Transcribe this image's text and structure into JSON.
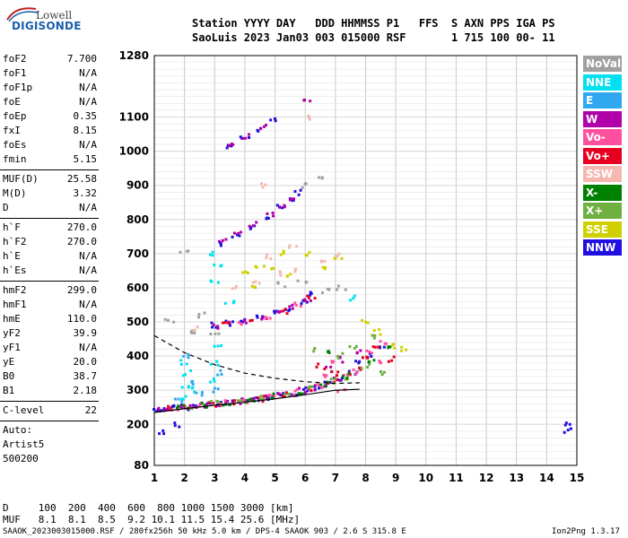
{
  "logo": {
    "top": "Lowell",
    "bottom": "DIGISONDE"
  },
  "header": {
    "labels": "Station YYYY DAY   DDD HHMMSS P1   FFS  S AXN PPS IGA PS",
    "values": "SaoLuis 2023 Jan03 003 015000 RSF       1 715 100 00- 11"
  },
  "params_group1": [
    {
      "k": "foF2",
      "v": "7.700"
    },
    {
      "k": "foF1",
      "v": "N/A"
    },
    {
      "k": "foF1p",
      "v": "N/A"
    },
    {
      "k": "foE",
      "v": "N/A"
    },
    {
      "k": "foEp",
      "v": "0.35"
    },
    {
      "k": "fxI",
      "v": "8.15"
    },
    {
      "k": "foEs",
      "v": "N/A"
    },
    {
      "k": "fmin",
      "v": "5.15"
    }
  ],
  "params_group2": [
    {
      "k": "MUF(D)",
      "v": "25.58"
    },
    {
      "k": "M(D)",
      "v": "3.32"
    },
    {
      "k": "D",
      "v": "N/A"
    }
  ],
  "params_group3": [
    {
      "k": "h`F",
      "v": "270.0"
    },
    {
      "k": "h`F2",
      "v": "270.0"
    },
    {
      "k": "h`E",
      "v": "N/A"
    },
    {
      "k": "h`Es",
      "v": "N/A"
    }
  ],
  "params_group4": [
    {
      "k": "hmF2",
      "v": "299.0"
    },
    {
      "k": "hmF1",
      "v": "N/A"
    },
    {
      "k": "hmE",
      "v": "110.0"
    },
    {
      "k": "yF2",
      "v": "39.9"
    },
    {
      "k": "yF1",
      "v": "N/A"
    },
    {
      "k": "yE",
      "v": "20.0"
    },
    {
      "k": "B0",
      "v": "38.7"
    },
    {
      "k": "B1",
      "v": "2.18"
    }
  ],
  "clevel": {
    "k": "C-level",
    "v": "22"
  },
  "auto": [
    "Auto:",
    "Artist5",
    "500200"
  ],
  "legend": [
    {
      "label": "NoVal",
      "color": "#a0a0a0"
    },
    {
      "label": "NNE",
      "color": "#00e0f0"
    },
    {
      "label": "E",
      "color": "#30a8f0"
    },
    {
      "label": "W",
      "color": "#b000a8"
    },
    {
      "label": "Vo-",
      "color": "#ff50a0"
    },
    {
      "label": "Vo+",
      "color": "#e80020"
    },
    {
      "label": "SSW",
      "color": "#f4b8b0"
    },
    {
      "label": "X-",
      "color": "#008000"
    },
    {
      "label": "X+",
      "color": "#70b040"
    },
    {
      "label": "SSE",
      "color": "#d0d000"
    },
    {
      "label": "NNW",
      "color": "#2010e0"
    }
  ],
  "bottom": {
    "d_row": "D     100  200  400  600  800 1000 1500 3000 [km]",
    "muf_row": "MUF   8.1  8.1  8.5  9.2 10.1 11.5 15.4 25.6 [MHz]"
  },
  "footer": {
    "left": "SAAOK_2023003015000.RSF / 280fx256h 50 kHz 5.0 km / DPS-4 SAAOK 903 / 2.6 S 315.8 E",
    "right": "Ion2Png 1.3.17"
  },
  "chart_data": {
    "type": "scatter",
    "title": "",
    "xlabel": "",
    "ylabel": "",
    "xlim": [
      1,
      15
    ],
    "ylim": [
      80,
      1280
    ],
    "x_ticks": [
      1,
      2,
      3,
      4,
      5,
      6,
      7,
      8,
      9,
      10,
      11,
      12,
      13,
      14,
      15
    ],
    "y_ticks": [
      80,
      200,
      300,
      400,
      500,
      600,
      700,
      800,
      900,
      1000,
      1100,
      1280
    ],
    "grid": true,
    "series": [
      {
        "name": "NNW",
        "color": "#2010e0",
        "points": [
          [
            1.1,
            240
          ],
          [
            1.3,
            245
          ],
          [
            1.6,
            248
          ],
          [
            2.0,
            250
          ],
          [
            2.4,
            255
          ],
          [
            2.8,
            258
          ],
          [
            3.2,
            262
          ],
          [
            3.6,
            265
          ],
          [
            4.0,
            268
          ],
          [
            4.4,
            272
          ],
          [
            4.8,
            278
          ],
          [
            5.2,
            285
          ],
          [
            5.6,
            292
          ],
          [
            6.0,
            300
          ],
          [
            6.4,
            310
          ],
          [
            6.8,
            322
          ],
          [
            7.2,
            335
          ],
          [
            7.6,
            350
          ],
          [
            3.0,
            490
          ],
          [
            3.5,
            495
          ],
          [
            4.0,
            500
          ],
          [
            4.5,
            510
          ],
          [
            5.0,
            525
          ],
          [
            5.5,
            540
          ],
          [
            6.0,
            560
          ],
          [
            6.3,
            580
          ],
          [
            3.2,
            730
          ],
          [
            3.7,
            755
          ],
          [
            4.2,
            780
          ],
          [
            4.7,
            810
          ],
          [
            5.1,
            835
          ],
          [
            5.5,
            860
          ],
          [
            5.8,
            880
          ],
          [
            3.5,
            1010
          ],
          [
            4.0,
            1040
          ],
          [
            4.5,
            1065
          ],
          [
            4.9,
            1090
          ],
          [
            7.8,
            380
          ],
          [
            8.2,
            400
          ],
          [
            8.5,
            420
          ],
          [
            14.7,
            180
          ],
          [
            14.7,
            200
          ],
          [
            1.2,
            180
          ],
          [
            1.8,
            200
          ]
        ]
      },
      {
        "name": "W",
        "color": "#b000a8",
        "points": [
          [
            1.2,
            242
          ],
          [
            1.5,
            246
          ],
          [
            1.9,
            249
          ],
          [
            2.3,
            253
          ],
          [
            2.7,
            257
          ],
          [
            3.1,
            261
          ],
          [
            3.5,
            264
          ],
          [
            3.9,
            268
          ],
          [
            4.3,
            271
          ],
          [
            4.7,
            277
          ],
          [
            5.1,
            283
          ],
          [
            5.5,
            290
          ],
          [
            5.9,
            298
          ],
          [
            6.3,
            307
          ],
          [
            6.7,
            318
          ],
          [
            7.1,
            332
          ],
          [
            3.1,
            488
          ],
          [
            3.6,
            494
          ],
          [
            4.1,
            502
          ],
          [
            4.6,
            512
          ],
          [
            5.1,
            527
          ],
          [
            5.6,
            545
          ],
          [
            6.1,
            565
          ],
          [
            3.3,
            735
          ],
          [
            3.8,
            760
          ],
          [
            4.3,
            785
          ],
          [
            4.8,
            815
          ],
          [
            5.2,
            840
          ],
          [
            5.6,
            862
          ],
          [
            3.6,
            1015
          ],
          [
            4.1,
            1045
          ],
          [
            4.6,
            1070
          ],
          [
            6.8,
            360
          ],
          [
            7.3,
            390
          ],
          [
            7.8,
            410
          ],
          [
            6.1,
            1150
          ]
        ]
      },
      {
        "name": "Vo+",
        "color": "#e80020",
        "points": [
          [
            1.4,
            245
          ],
          [
            2.1,
            252
          ],
          [
            2.9,
            259
          ],
          [
            3.7,
            266
          ],
          [
            4.5,
            275
          ],
          [
            5.3,
            287
          ],
          [
            6.1,
            303
          ],
          [
            6.9,
            325
          ],
          [
            7.5,
            345
          ],
          [
            7.9,
            360
          ],
          [
            3.4,
            492
          ],
          [
            4.3,
            505
          ],
          [
            5.3,
            532
          ],
          [
            6.2,
            570
          ],
          [
            8.0,
            400
          ],
          [
            8.3,
            430
          ],
          [
            8.8,
            390
          ],
          [
            6.5,
            370
          ],
          [
            7.0,
            350
          ]
        ]
      },
      {
        "name": "Vo-",
        "color": "#ff50a0",
        "points": [
          [
            1.7,
            247
          ],
          [
            2.5,
            255
          ],
          [
            3.3,
            262
          ],
          [
            4.1,
            269
          ],
          [
            4.9,
            280
          ],
          [
            5.7,
            294
          ],
          [
            6.5,
            313
          ],
          [
            7.3,
            338
          ],
          [
            7.7,
            355
          ],
          [
            3.8,
            497
          ],
          [
            4.8,
            518
          ],
          [
            5.8,
            553
          ],
          [
            8.1,
            410
          ],
          [
            8.6,
            440
          ],
          [
            8.4,
            380
          ],
          [
            6.6,
            340
          ],
          [
            7.2,
            300
          ],
          [
            6.9,
            380
          ]
        ]
      },
      {
        "name": "X+",
        "color": "#70b040",
        "points": [
          [
            2.2,
            254
          ],
          [
            3.0,
            260
          ],
          [
            3.9,
            267
          ],
          [
            4.6,
            276
          ],
          [
            5.4,
            289
          ],
          [
            6.2,
            305
          ],
          [
            7.0,
            328
          ],
          [
            7.4,
            340
          ],
          [
            8.0,
            370
          ],
          [
            8.5,
            350
          ],
          [
            6.4,
            420
          ],
          [
            7.1,
            400
          ],
          [
            8.3,
            455
          ],
          [
            7.6,
            430
          ]
        ]
      },
      {
        "name": "X-",
        "color": "#008000",
        "points": [
          [
            1.9,
            250
          ],
          [
            2.6,
            256
          ],
          [
            3.4,
            263
          ],
          [
            4.2,
            270
          ],
          [
            5.0,
            282
          ],
          [
            5.8,
            296
          ],
          [
            6.6,
            316
          ],
          [
            7.4,
            342
          ],
          [
            8.2,
            390
          ],
          [
            6.9,
            410
          ],
          [
            8.7,
            420
          ]
        ]
      },
      {
        "name": "NNE",
        "color": "#00e0f0",
        "points": [
          [
            1.9,
            280
          ],
          [
            2.0,
            310
          ],
          [
            2.1,
            350
          ],
          [
            2.0,
            380
          ],
          [
            2.9,
            330
          ],
          [
            3.0,
            380
          ],
          [
            3.1,
            430
          ],
          [
            2.3,
            300
          ],
          [
            3.0,
            620
          ],
          [
            3.1,
            660
          ],
          [
            3.0,
            700
          ],
          [
            7.5,
            570
          ],
          [
            3.5,
            560
          ]
        ]
      },
      {
        "name": "E",
        "color": "#30a8f0",
        "points": [
          [
            1.8,
            270
          ],
          [
            2.2,
            320
          ],
          [
            2.5,
            290
          ],
          [
            2.0,
            400
          ],
          [
            3.0,
            300
          ],
          [
            3.2,
            350
          ]
        ]
      },
      {
        "name": "SSE",
        "color": "#d0d000",
        "points": [
          [
            4.0,
            640
          ],
          [
            4.5,
            660
          ],
          [
            5.0,
            650
          ],
          [
            5.5,
            640
          ],
          [
            6.0,
            700
          ],
          [
            4.2,
            600
          ],
          [
            6.6,
            660
          ],
          [
            7.1,
            680
          ],
          [
            8.0,
            500
          ],
          [
            8.4,
            470
          ],
          [
            8.9,
            430
          ],
          [
            9.2,
            420
          ],
          [
            5.2,
            700
          ]
        ]
      },
      {
        "name": "SSW",
        "color": "#f4b8b0",
        "points": [
          [
            3.6,
            600
          ],
          [
            4.4,
            620
          ],
          [
            5.1,
            640
          ],
          [
            5.8,
            650
          ],
          [
            6.5,
            680
          ],
          [
            7.0,
            700
          ],
          [
            4.8,
            690
          ],
          [
            5.6,
            720
          ],
          [
            2.4,
            480
          ],
          [
            6.2,
            1100
          ],
          [
            4.7,
            900
          ]
        ]
      },
      {
        "name": "NoVal",
        "color": "#a0a0a0",
        "points": [
          [
            1.5,
            500
          ],
          [
            2.3,
            470
          ],
          [
            2.6,
            520
          ],
          [
            3.0,
            460
          ],
          [
            5.2,
            610
          ],
          [
            5.9,
            620
          ],
          [
            6.7,
            590
          ],
          [
            7.2,
            600
          ],
          [
            2.0,
            700
          ],
          [
            6.0,
            900
          ],
          [
            6.5,
            920
          ]
        ]
      }
    ],
    "curves": [
      {
        "name": "dashed",
        "x": [
          1.0,
          2.0,
          3.0,
          4.0,
          5.0,
          6.0,
          7.0,
          7.8
        ],
        "y": [
          460,
          410,
          375,
          350,
          335,
          325,
          320,
          322
        ]
      },
      {
        "name": "solid",
        "x": [
          1.0,
          2.0,
          3.0,
          4.0,
          5.0,
          6.0,
          7.0,
          7.8
        ],
        "y": [
          235,
          246,
          256,
          265,
          275,
          287,
          300,
          303
        ]
      }
    ]
  }
}
